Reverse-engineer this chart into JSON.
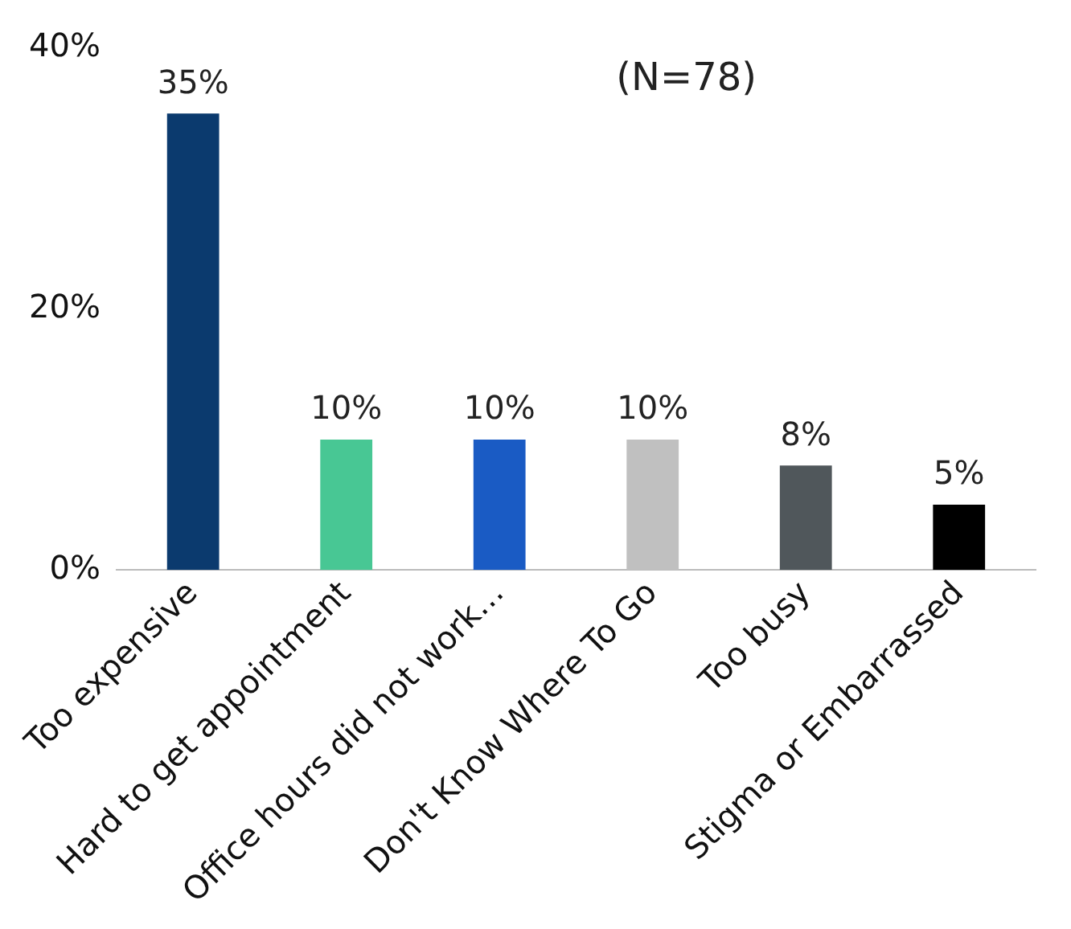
{
  "chart_data": {
    "type": "bar",
    "annotations": [
      "(N=78)"
    ],
    "categories": [
      "Too expensive",
      "Hard to get appointment",
      "Office hours did not work…",
      "Don't Know Where To Go",
      "Too busy",
      "Stigma or Embarrassed"
    ],
    "values": [
      35,
      10,
      10,
      10,
      8,
      5
    ],
    "colors": [
      "#0b3a6e",
      "#48c794",
      "#1a5bc4",
      "#c0c0c0",
      "#50575b",
      "#000000"
    ],
    "ylim": [
      0,
      40
    ],
    "yticks": [
      {
        "value": 0,
        "label": "0%"
      },
      {
        "value": 20,
        "label": "20%"
      },
      {
        "value": 40,
        "label": "40%"
      }
    ],
    "value_labels": [
      "35%",
      "10%",
      "10%",
      "10%",
      "8%",
      "5%"
    ],
    "grid": false,
    "legend": false
  }
}
